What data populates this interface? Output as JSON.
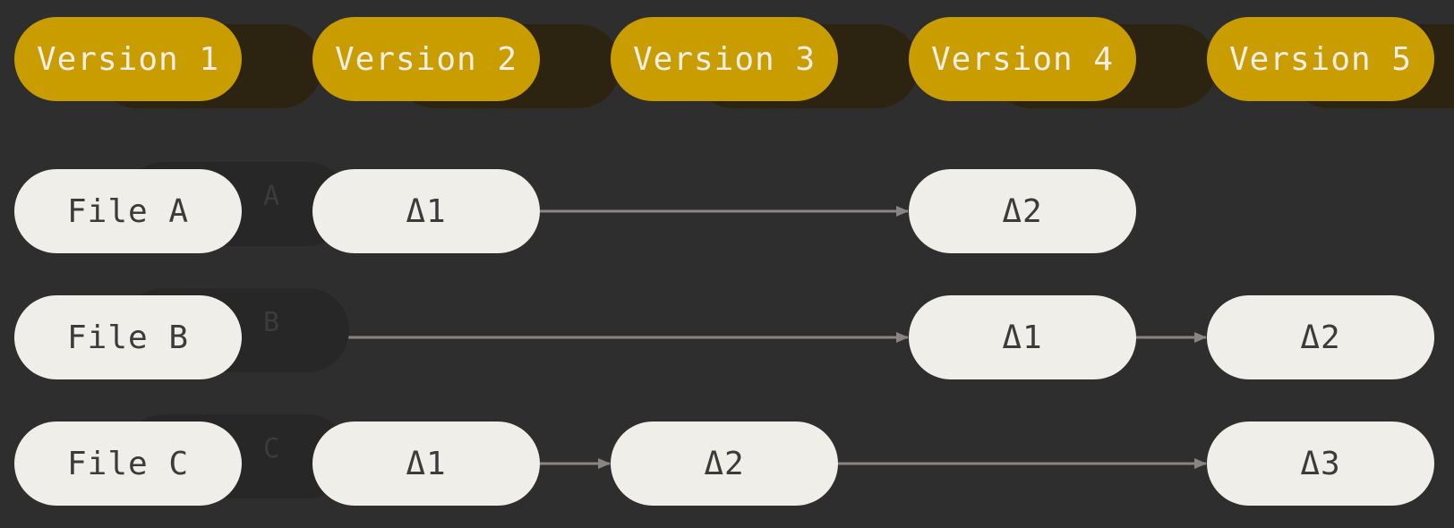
{
  "versions": [
    "Version 1",
    "Version 2",
    "Version 3",
    "Version 4",
    "Version 5"
  ],
  "files": [
    {
      "label": "File A",
      "faint": "A",
      "cells": {
        "1": "Δ1",
        "3": "Δ2"
      }
    },
    {
      "label": "File B",
      "faint": "B",
      "cells": {
        "3": "Δ1",
        "4": "Δ2"
      }
    },
    {
      "label": "File C",
      "faint": "C",
      "cells": {
        "1": "Δ1",
        "2": "Δ2",
        "4": "Δ3"
      }
    }
  ],
  "colors": {
    "background": "#2e2e2e",
    "version_pill": "#c99c00",
    "file_pill": "#efeee8",
    "arrow": "#8a8580"
  }
}
